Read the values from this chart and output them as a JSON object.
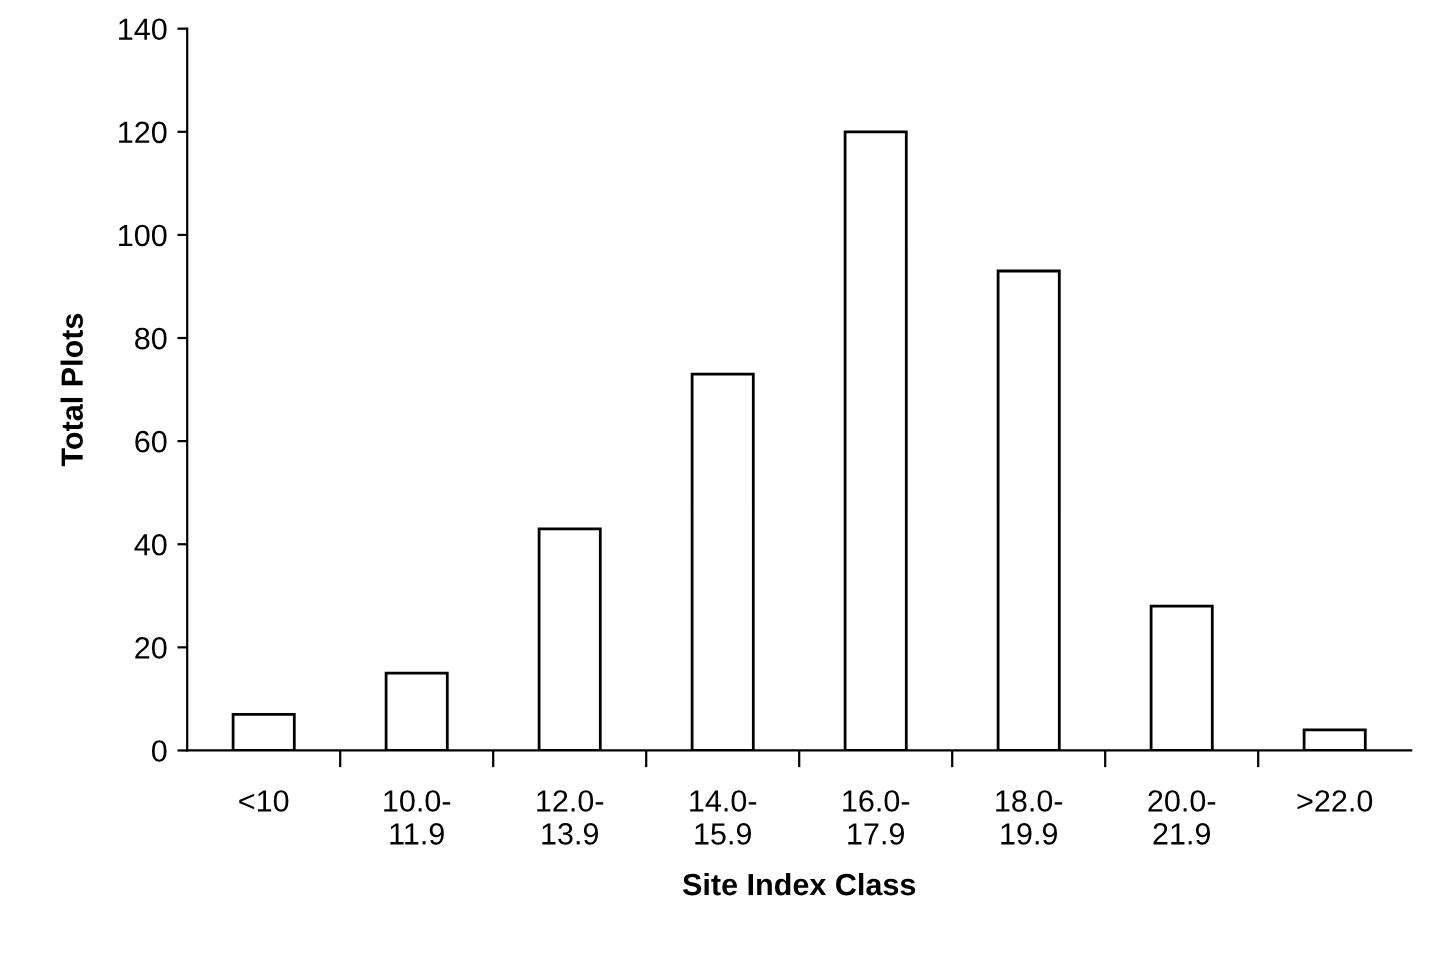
{
  "chart_data": {
    "type": "bar",
    "xlabel": "Site Index Class",
    "ylabel": "Total Plots",
    "categories": [
      "<10",
      "10.0-\n11.9",
      "12.0-\n13.9",
      "14.0-\n15.9",
      "16.0-\n17.9",
      "18.0-\n19.9",
      "20.0-\n21.9",
      ">22.0"
    ],
    "values": [
      7,
      15,
      43,
      73,
      120,
      93,
      28,
      4
    ],
    "color": "#ffffff",
    "ylim": [
      0,
      140
    ],
    "yticks": [
      0,
      20,
      40,
      60,
      80,
      100,
      120,
      140
    ],
    "grid": false,
    "legend": false
  }
}
